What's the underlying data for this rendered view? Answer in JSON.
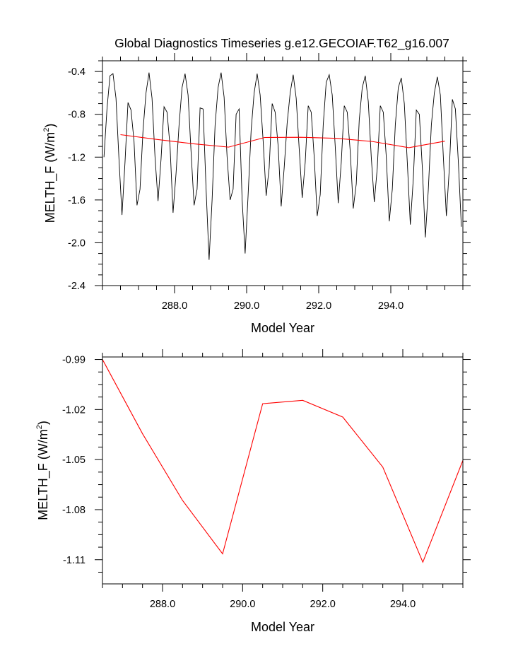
{
  "title": "Global Diagnostics Timeseries g.e12.GECOIAF.T62_g16.007",
  "colors": {
    "monthly_line": "#000000",
    "annual_line": "#ff0000",
    "axes": "#000000"
  },
  "chart_data": [
    {
      "type": "line",
      "xlabel": "Model Year",
      "ylabel_base": "MELTH_F (W/m",
      "ylabel_sup": "2",
      "ylabel_close": ")",
      "xlim": [
        286.0,
        296.0
      ],
      "ylim": [
        -2.4,
        -0.3
      ],
      "xticks": [
        288.0,
        290.0,
        292.0,
        294.0
      ],
      "xtick_labels": [
        "288.0",
        "290.0",
        "292.0",
        "294.0"
      ],
      "yticks": [
        -0.4,
        -0.8,
        -1.2,
        -1.6,
        -2.0,
        -2.4
      ],
      "ytick_labels": [
        "-0.4",
        "-0.8",
        "-1.2",
        "-1.6",
        "-2.0",
        "-2.4"
      ],
      "series": [
        {
          "style": "monthly",
          "x": [
            286.0417,
            286.125,
            286.2083,
            286.2917,
            286.375,
            286.4583,
            286.5417,
            286.625,
            286.7083,
            286.7917,
            286.875,
            286.9583,
            287.0417,
            287.125,
            287.2083,
            287.2917,
            287.375,
            287.4583,
            287.5417,
            287.625,
            287.7083,
            287.7917,
            287.875,
            287.9583,
            288.0417,
            288.125,
            288.2083,
            288.2917,
            288.375,
            288.4583,
            288.5417,
            288.625,
            288.7083,
            288.7917,
            288.875,
            288.9583,
            289.0417,
            289.125,
            289.2083,
            289.2917,
            289.375,
            289.4583,
            289.5417,
            289.625,
            289.7083,
            289.7917,
            289.875,
            289.9583,
            290.0417,
            290.125,
            290.2083,
            290.2917,
            290.375,
            290.4583,
            290.5417,
            290.625,
            290.7083,
            290.7917,
            290.875,
            290.9583,
            291.0417,
            291.125,
            291.2083,
            291.2917,
            291.375,
            291.4583,
            291.5417,
            291.625,
            291.7083,
            291.7917,
            291.875,
            291.9583,
            292.0417,
            292.125,
            292.2083,
            292.2917,
            292.375,
            292.4583,
            292.5417,
            292.625,
            292.7083,
            292.7917,
            292.875,
            292.9583,
            293.0417,
            293.125,
            293.2083,
            293.2917,
            293.375,
            293.4583,
            293.5417,
            293.625,
            293.7083,
            293.7917,
            293.875,
            293.9583,
            294.0417,
            294.125,
            294.2083,
            294.2917,
            294.375,
            294.4583,
            294.5417,
            294.625,
            294.7083,
            294.7917,
            294.875,
            294.9583,
            295.0417,
            295.125,
            295.2083,
            295.2917,
            295.375,
            295.4583,
            295.5417,
            295.625,
            295.7083,
            295.7917,
            295.875,
            295.9583
          ],
          "values": [
            -1.2,
            -0.75,
            -0.44,
            -0.42,
            -0.65,
            -1.22,
            -1.74,
            -1.25,
            -0.69,
            -0.76,
            -1.05,
            -1.65,
            -1.5,
            -0.95,
            -0.6,
            -0.41,
            -0.65,
            -1.2,
            -1.61,
            -1.22,
            -0.73,
            -0.78,
            -1.1,
            -1.72,
            -1.35,
            -0.9,
            -0.55,
            -0.42,
            -0.62,
            -1.15,
            -1.65,
            -1.5,
            -0.74,
            -0.75,
            -1.5,
            -2.16,
            -1.6,
            -0.9,
            -0.55,
            -0.41,
            -0.64,
            -1.2,
            -1.6,
            -1.5,
            -0.8,
            -0.75,
            -1.6,
            -2.1,
            -1.55,
            -0.95,
            -0.6,
            -0.42,
            -0.62,
            -1.05,
            -1.56,
            -1.3,
            -0.7,
            -0.78,
            -1.1,
            -1.66,
            -1.3,
            -0.88,
            -0.6,
            -0.43,
            -0.65,
            -1.12,
            -1.58,
            -1.25,
            -0.72,
            -0.78,
            -1.2,
            -1.75,
            -1.55,
            -0.9,
            -0.5,
            -0.43,
            -0.62,
            -1.1,
            -1.63,
            -1.25,
            -0.72,
            -0.78,
            -1.15,
            -1.68,
            -1.45,
            -0.85,
            -0.55,
            -0.44,
            -0.68,
            -1.2,
            -1.62,
            -1.3,
            -0.72,
            -0.78,
            -1.2,
            -1.8,
            -1.5,
            -0.9,
            -0.55,
            -0.46,
            -0.7,
            -1.25,
            -1.83,
            -1.4,
            -0.76,
            -0.8,
            -1.3,
            -1.95,
            -1.5,
            -0.9,
            -0.6,
            -0.45,
            -0.62,
            -1.2,
            -1.75,
            -1.3,
            -0.66,
            -0.75,
            -1.25,
            -1.85
          ]
        },
        {
          "style": "annual",
          "x": [
            286.5,
            287.5,
            288.5,
            289.5,
            290.5,
            291.5,
            292.5,
            293.5,
            294.5,
            295.5
          ],
          "values": [
            -0.99,
            -1.0345,
            -1.0745,
            -1.1065,
            -1.0165,
            -1.0145,
            -1.0245,
            -1.0545,
            -1.1115,
            -1.0505
          ]
        }
      ]
    },
    {
      "type": "line",
      "xlabel": "Model Year",
      "ylabel_base": "MELTH_F (W/m",
      "ylabel_sup": "2",
      "ylabel_close": ")",
      "xlim": [
        286.5,
        295.5
      ],
      "ylim": [
        -1.1245,
        -0.9885
      ],
      "xticks": [
        288.0,
        290.0,
        292.0,
        294.0
      ],
      "xtick_labels": [
        "288.0",
        "290.0",
        "292.0",
        "294.0"
      ],
      "yticks": [
        -0.99,
        -1.02,
        -1.05,
        -1.08,
        -1.11
      ],
      "ytick_labels": [
        "-0.99",
        "-1.02",
        "-1.05",
        "-1.08",
        "-1.11"
      ],
      "series": [
        {
          "style": "annual",
          "x": [
            286.5,
            287.5,
            288.5,
            289.5,
            290.5,
            291.5,
            292.5,
            293.5,
            294.5,
            295.5
          ],
          "values": [
            -0.99,
            -1.0345,
            -1.0745,
            -1.1065,
            -1.0165,
            -1.0145,
            -1.0245,
            -1.0545,
            -1.1115,
            -1.0505
          ]
        }
      ]
    }
  ]
}
